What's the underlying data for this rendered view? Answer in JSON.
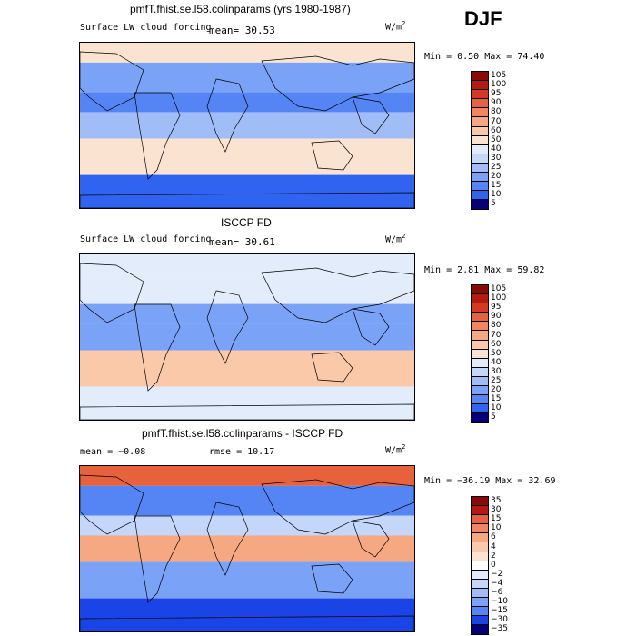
{
  "season": "DJF",
  "colors": {
    "scale": [
      "#08007a",
      "#0a1fbd",
      "#1a44e6",
      "#2f63f0",
      "#5585f4",
      "#7aa2f6",
      "#a0bdf8",
      "#c4d6fa",
      "#e3ecfb",
      "#ffffff",
      "#fbe3d2",
      "#f9c9a9",
      "#f6a883",
      "#f2855e",
      "#e7613c",
      "#d43a22",
      "#b51a10",
      "#8a0a04"
    ],
    "coast": "#000000"
  },
  "panels": [
    {
      "title": "pmfT.fhist.se.l58.colinparams (yrs 1980-1987)",
      "left_label": "Surface LW cloud forcing",
      "mean_label": "mean=  30.53",
      "units": "W/m",
      "units_sup": "2",
      "minmax": "Min =    0.50 Max =  74.40",
      "colorbar_labels": [
        "105",
        "100",
        "95",
        "90",
        "80",
        "70",
        "60",
        "50",
        "40",
        "30",
        "25",
        "20",
        "15",
        "10",
        "5"
      ]
    },
    {
      "title": "ISCCP FD",
      "left_label": "Surface LW cloud forcing",
      "mean_label": "mean=  30.61",
      "units": "W/m",
      "units_sup": "2",
      "minmax": "Min =    2.81 Max =  59.82",
      "colorbar_labels": [
        "105",
        "100",
        "95",
        "90",
        "80",
        "70",
        "60",
        "50",
        "40",
        "30",
        "25",
        "20",
        "15",
        "10",
        "5"
      ]
    },
    {
      "title": "pmfT.fhist.se.l58.colinparams - ISCCP FD",
      "left_label": "mean =  −0.08",
      "mean_label": "rmse =  10.17",
      "units": "W/m",
      "units_sup": "2",
      "minmax": "Min = −36.19 Max =  32.69",
      "colorbar_labels": [
        "35",
        "30",
        "15",
        "10",
        "6",
        "4",
        "2",
        "0",
        "−2",
        "−4",
        "−6",
        "−10",
        "−15",
        "−30",
        "−35"
      ]
    }
  ],
  "chart_data": [
    {
      "type": "heatmap",
      "title": "pmfT.fhist.se.l58.colinparams (yrs 1980-1987)",
      "subtitle": "Surface LW cloud forcing",
      "season": "DJF",
      "units": "W/m2",
      "mean": 30.53,
      "min": 0.5,
      "max": 74.4,
      "contour_levels": [
        5,
        10,
        15,
        20,
        25,
        30,
        40,
        50,
        60,
        70,
        80,
        90,
        95,
        100,
        105
      ],
      "zonal_pattern": [
        {
          "lat_band": "high northern latitudes",
          "value_approx": 50
        },
        {
          "lat_band": "northern storm track",
          "value_approx": 20
        },
        {
          "lat_band": "subtropics",
          "value_approx": 15
        },
        {
          "lat_band": "tropics",
          "value_approx": 25
        },
        {
          "lat_band": "southern storm track",
          "value_approx": 45
        },
        {
          "lat_band": "Antarctica",
          "value_approx": 10
        }
      ]
    },
    {
      "type": "heatmap",
      "title": "ISCCP FD",
      "subtitle": "Surface LW cloud forcing",
      "season": "DJF",
      "units": "W/m2",
      "mean": 30.61,
      "min": 2.81,
      "max": 59.82,
      "contour_levels": [
        5,
        10,
        15,
        20,
        25,
        30,
        40,
        50,
        60,
        70,
        80,
        90,
        95,
        100,
        105
      ],
      "zonal_pattern": [
        {
          "lat_band": "high northern latitudes",
          "value_approx": 35
        },
        {
          "lat_band": "northern storm track",
          "value_approx": 40
        },
        {
          "lat_band": "subtropics",
          "value_approx": 20
        },
        {
          "lat_band": "tropics",
          "value_approx": 20
        },
        {
          "lat_band": "southern storm track",
          "value_approx": 55
        },
        {
          "lat_band": "Antarctica",
          "value_approx": 40
        }
      ]
    },
    {
      "type": "heatmap",
      "title": "pmfT.fhist.se.l58.colinparams - ISCCP FD",
      "season": "DJF",
      "units": "W/m2",
      "mean": -0.08,
      "rmse": 10.17,
      "min": -36.19,
      "max": 32.69,
      "contour_levels": [
        -35,
        -30,
        -15,
        -10,
        -6,
        -4,
        -2,
        0,
        2,
        4,
        6,
        10,
        15,
        30,
        35
      ],
      "zonal_pattern": [
        {
          "lat_band": "high northern latitudes",
          "value_approx": 12
        },
        {
          "lat_band": "northern storm track",
          "value_approx": -15
        },
        {
          "lat_band": "subtropics",
          "value_approx": -4
        },
        {
          "lat_band": "tropics",
          "value_approx": 6
        },
        {
          "lat_band": "southern storm track",
          "value_approx": -10
        },
        {
          "lat_band": "Antarctica",
          "value_approx": -30
        }
      ]
    }
  ]
}
